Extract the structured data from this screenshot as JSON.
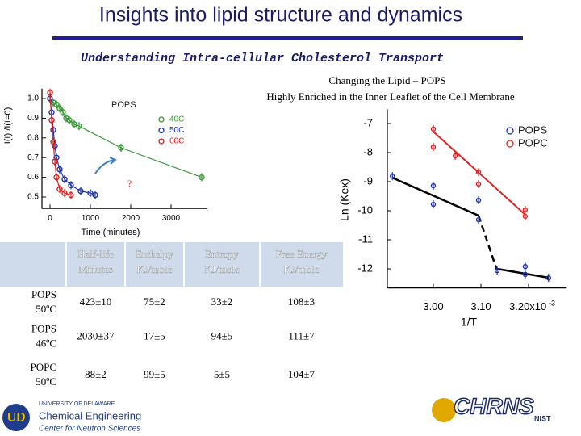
{
  "title": "Insights into lipid structure and dynamics",
  "subtitle": "Understanding Intra-cellular Cholesterol Transport",
  "caption": [
    "Changing the Lipid – POPS",
    "Highly Enriched in the Inner Leaflet of the Cell Membrane"
  ],
  "chart_data": [
    {
      "type": "scatter",
      "xlabel": "Time (minutes)",
      "ylabel": "I(t) /I(t=0)",
      "annotations": [
        "POPS",
        "?"
      ],
      "xlim": [
        -200,
        3900
      ],
      "xticks": [
        0,
        1000,
        2000,
        3000
      ],
      "ylim": [
        0.45,
        1.03
      ],
      "yticks": [
        0.5,
        0.6,
        0.7,
        0.8,
        0.9,
        {
          "value": 1,
          "label": "1.0"
        }
      ],
      "series": [
        {
          "name": "40C",
          "color": "#3a9a3a",
          "x": [
            0,
            80,
            160,
            240,
            320,
            400,
            480,
            600,
            720,
            1760,
            3760
          ],
          "values": [
            1.0,
            0.98,
            0.97,
            0.95,
            0.93,
            0.9,
            0.89,
            0.87,
            0.86,
            0.75,
            0.6
          ]
        },
        {
          "name": "50C",
          "color": "#2233aa",
          "x": [
            0,
            40,
            80,
            120,
            160,
            240,
            360,
            520,
            760,
            1000,
            1120
          ],
          "values": [
            1.0,
            0.93,
            0.84,
            0.76,
            0.7,
            0.64,
            0.59,
            0.56,
            0.53,
            0.52,
            0.51
          ]
        },
        {
          "name": "60C",
          "color": "#dd2222",
          "x": [
            0,
            40,
            80,
            120,
            160,
            240,
            360,
            520
          ],
          "values": [
            1.03,
            0.89,
            0.78,
            0.68,
            0.6,
            0.54,
            0.52,
            0.51
          ]
        }
      ]
    },
    {
      "type": "scatter",
      "xlabel": "1/T",
      "ylabel": "Ln (Kex)",
      "x_exponent": "-3",
      "xlim": [
        2.9,
        3.28
      ],
      "xticks": [
        {
          "value": 3,
          "label": "3.00"
        },
        {
          "value": 3.1,
          "label": "3.10"
        },
        {
          "value": 3.2,
          "label": "3.20x10"
        }
      ],
      "ylim": [
        -12.6,
        -6.65
      ],
      "yticks": [
        -7,
        -8,
        -9,
        -10,
        -11,
        -12
      ],
      "series": [
        {
          "name": "POPS",
          "color": "#2233aa",
          "x": [
            2.914,
            3.0,
            3.0,
            3.095,
            3.095,
            3.134,
            3.193,
            3.193,
            3.242
          ],
          "values": [
            -8.81,
            -9.14,
            -9.78,
            -9.64,
            -10.31,
            -12.06,
            -11.92,
            -12.19,
            -12.31
          ]
        },
        {
          "name": "POPC",
          "color": "#dd2222",
          "x": [
            3.0,
            3.0,
            3.046,
            3.095,
            3.095,
            3.193,
            3.193
          ],
          "values": [
            -7.19,
            -7.81,
            -8.11,
            -8.67,
            -9.08,
            -9.97,
            -10.19
          ]
        }
      ]
    }
  ],
  "table": {
    "header": [
      [
        "Half-life",
        "Minutes"
      ],
      [
        "Enthalpy",
        "KJ/mole"
      ],
      [
        "Entropy",
        "KJ/mole"
      ],
      [
        "Free Energy",
        "KJ/mole"
      ]
    ],
    "rows": [
      [
        [
          "POPS",
          "50ºC"
        ],
        "423±10",
        "75±2",
        "33±2",
        "108±3"
      ],
      [
        [
          "POPS",
          "46ºC"
        ],
        "2030±37",
        "17±5",
        "94±5",
        "111±7"
      ],
      [
        [
          "POPC",
          "50ºC"
        ],
        "88±2",
        "99±5",
        "5±5",
        "104±7"
      ]
    ]
  },
  "logos": {
    "university": "UNIVERSITY OF DELAWARE",
    "department": "Chemical Engineering",
    "center": "Center for Neutron Sciences",
    "chrns": "CHRNS",
    "nist": "NIST"
  }
}
